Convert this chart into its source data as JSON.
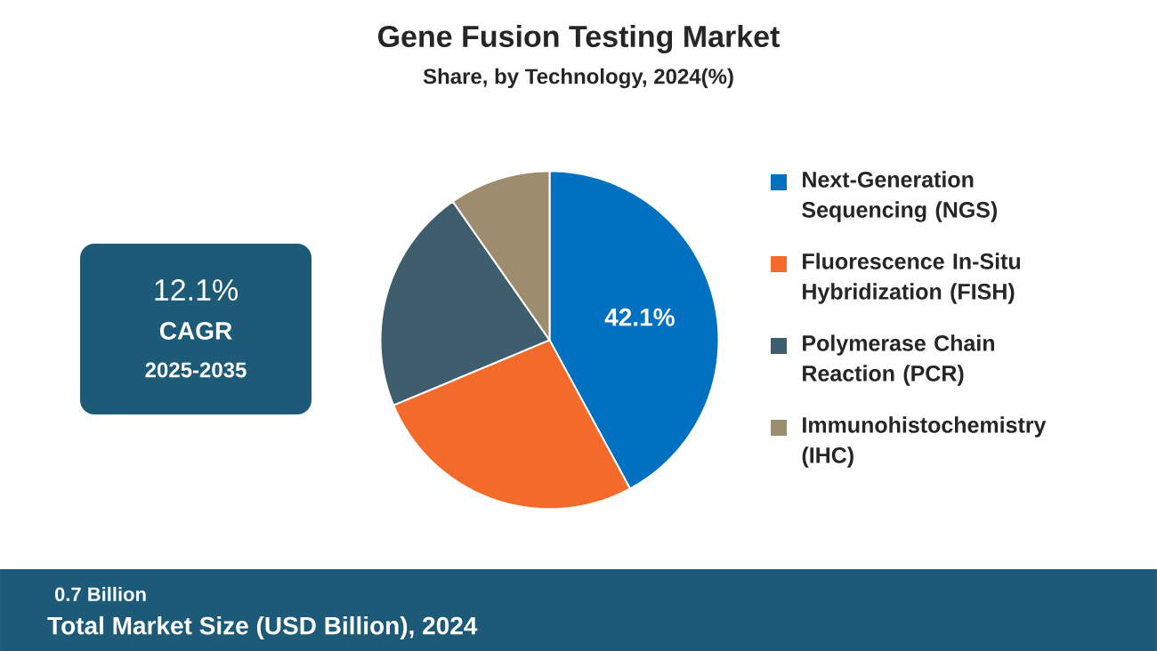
{
  "chart_data": {
    "type": "pie",
    "title": "Gene Fusion Testing Market",
    "subtitle": "Share, by Technology, 2024(%)",
    "categories": [
      "Next-Generation Sequencing (NGS)",
      "Fluorescence In-Situ Hybridization (FISH)",
      "Polymerase Chain Reaction (PCR)",
      "Immunohistochemistry (IHC)"
    ],
    "values": [
      42.1,
      26.6,
      21.6,
      9.7
    ],
    "colors": [
      "#0070c0",
      "#f26b2a",
      "#3e5e6e",
      "#9e8c6e"
    ],
    "value_labels": [
      "42.1%",
      null,
      null,
      null
    ],
    "legend": "right",
    "annotations": [
      "12.1%",
      "CAGR",
      "2025-2035",
      "0.7 Billion",
      "Total Market Size (USD Billion), 2024"
    ]
  }
}
